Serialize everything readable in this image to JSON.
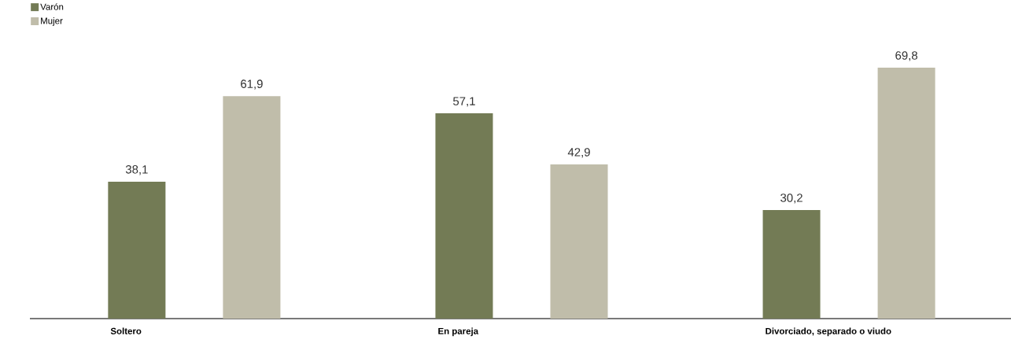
{
  "chart_data": {
    "type": "bar",
    "categories": [
      "Soltero",
      "En pareja",
      "Divorciado, separado o viudo"
    ],
    "series": [
      {
        "name": "Varón",
        "color": "#737b55",
        "values": [
          38.1,
          57.1,
          30.2
        ],
        "value_labels": [
          "38,1",
          "57,1",
          "30,2"
        ]
      },
      {
        "name": "Mujer",
        "color": "#c0bdaa",
        "values": [
          61.9,
          42.9,
          69.8
        ],
        "value_labels": [
          "61,9",
          "42,9",
          "69,8"
        ]
      }
    ],
    "legend": "top left"
  }
}
